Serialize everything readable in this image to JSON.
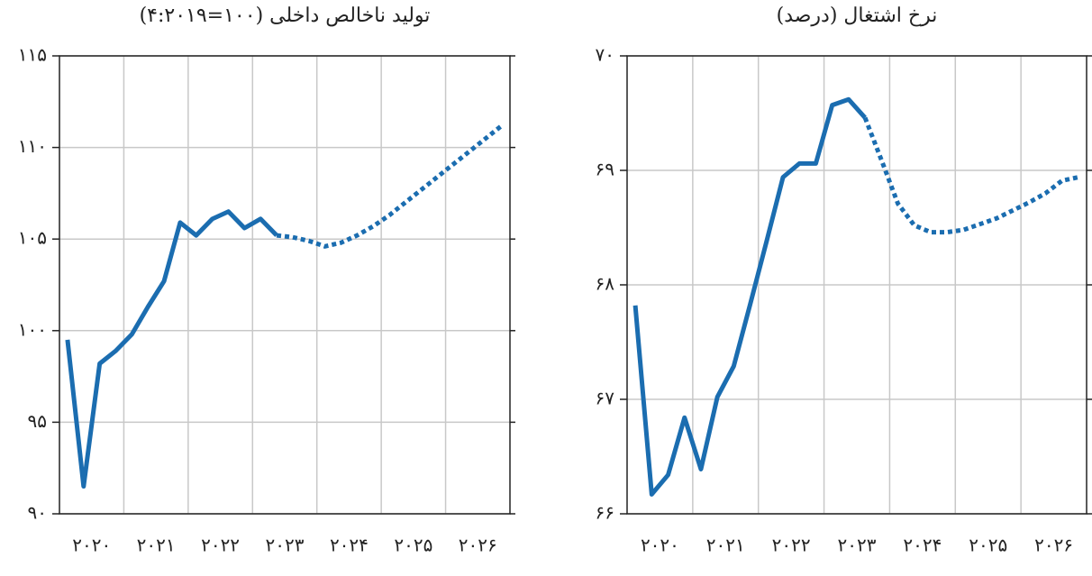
{
  "chart_data": [
    {
      "type": "line",
      "title": "تولید ناخالص داخلی (۱۰۰=۴:۲۰۱۹)",
      "categories": [
        "۲۰۲۰",
        "۲۰۲۱",
        "۲۰۲۲",
        "۲۰۲۳",
        "۲۰۲۴",
        "۲۰۲۵",
        "۲۰۲۶"
      ],
      "x": [
        2020.125,
        2020.375,
        2020.625,
        2020.875,
        2021.125,
        2021.375,
        2021.625,
        2021.875,
        2022.125,
        2022.375,
        2022.625,
        2022.875,
        2023.125,
        2023.375,
        2023.625,
        2023.875,
        2024.125,
        2024.375,
        2024.625,
        2024.875,
        2025.125,
        2025.375,
        2025.625,
        2025.875,
        2026.125,
        2026.375,
        2026.625,
        2026.875
      ],
      "xlim": [
        2020,
        2027
      ],
      "ylim": [
        90,
        115
      ],
      "yticks": [
        {
          "value": 90,
          "label": "۹۰"
        },
        {
          "value": 95,
          "label": "۹۵"
        },
        {
          "value": 100,
          "label": "۱۰۰"
        },
        {
          "value": 105,
          "label": "۱۰۵"
        },
        {
          "value": 110,
          "label": "۱۱۰"
        },
        {
          "value": 115,
          "label": "۱۱۵"
        }
      ],
      "grid": true,
      "series": [
        {
          "color": "#1b6db0",
          "style": "solid",
          "values": [
            99.5,
            91.5,
            98.2,
            98.9,
            99.8,
            101.3,
            102.7,
            105.9,
            105.2,
            106.1,
            106.5,
            105.6,
            106.1,
            105.2,
            null,
            null,
            null,
            null,
            null,
            null,
            null,
            null,
            null,
            null,
            null,
            null,
            null,
            null
          ]
        },
        {
          "color": "#1b6db0",
          "style": "dotted",
          "values": [
            null,
            null,
            null,
            null,
            null,
            null,
            null,
            null,
            null,
            null,
            null,
            null,
            null,
            105.2,
            105.1,
            104.9,
            104.6,
            104.8,
            105.2,
            105.7,
            106.3,
            107.0,
            107.7,
            108.4,
            109.1,
            109.8,
            110.5,
            111.2
          ]
        }
      ]
    },
    {
      "type": "line",
      "title": "نرخ اشتغال (درصد)",
      "categories": [
        "۲۰۲۰",
        "۲۰۲۱",
        "۲۰۲۲",
        "۲۰۲۳",
        "۲۰۲۴",
        "۲۰۲۵",
        "۲۰۲۶"
      ],
      "x": [
        2020.125,
        2020.375,
        2020.625,
        2020.875,
        2021.125,
        2021.375,
        2021.625,
        2021.875,
        2022.125,
        2022.375,
        2022.625,
        2022.875,
        2023.125,
        2023.375,
        2023.625,
        2023.875,
        2024.125,
        2024.375,
        2024.625,
        2024.875,
        2025.125,
        2025.375,
        2025.625,
        2025.875,
        2026.125,
        2026.375,
        2026.625,
        2026.875
      ],
      "xlim": [
        2020,
        2027
      ],
      "ylim": [
        66,
        70
      ],
      "yticks": [
        {
          "value": 66,
          "label": "۶۶"
        },
        {
          "value": 67,
          "label": "۶۷"
        },
        {
          "value": 68,
          "label": "۶۸"
        },
        {
          "value": 69,
          "label": "۶۹"
        },
        {
          "value": 70,
          "label": "۷۰"
        }
      ],
      "grid": true,
      "series": [
        {
          "color": "#1b6db0",
          "style": "solid",
          "values": [
            67.82,
            66.17,
            66.34,
            66.84,
            66.39,
            67.02,
            67.29,
            67.83,
            68.38,
            68.94,
            69.06,
            69.06,
            69.57,
            69.62,
            69.46,
            null,
            null,
            null,
            null,
            null,
            null,
            null,
            null,
            null,
            null,
            null,
            null,
            null
          ]
        },
        {
          "color": "#1b6db0",
          "style": "dotted",
          "values": [
            null,
            null,
            null,
            null,
            null,
            null,
            null,
            null,
            null,
            null,
            null,
            null,
            null,
            null,
            69.46,
            69.09,
            68.71,
            68.52,
            68.46,
            68.46,
            68.48,
            68.53,
            68.58,
            68.65,
            68.72,
            68.8,
            68.91,
            68.94
          ]
        }
      ]
    }
  ]
}
